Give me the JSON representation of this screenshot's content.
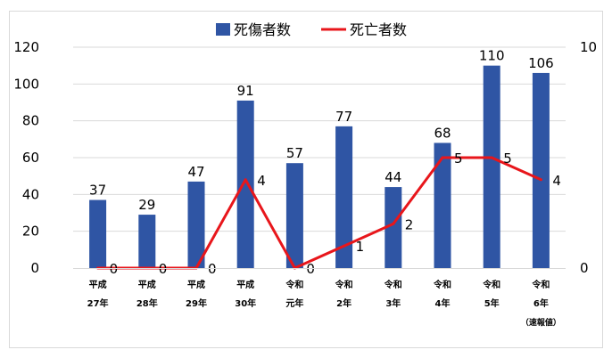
{
  "chart_data": {
    "type": "bar",
    "title": "",
    "categories": [
      [
        "平成",
        "27年"
      ],
      [
        "平成",
        "28年"
      ],
      [
        "平成",
        "29年"
      ],
      [
        "平成",
        "30年"
      ],
      [
        "令和",
        "元年"
      ],
      [
        "令和",
        "2年"
      ],
      [
        "令和",
        "3年"
      ],
      [
        "令和",
        "4年"
      ],
      [
        "令和",
        "5年"
      ],
      [
        "令和",
        "6年",
        "（速報値）"
      ]
    ],
    "series": [
      {
        "name": "死傷者数",
        "type": "bar",
        "axis": "left",
        "values": [
          37,
          29,
          47,
          91,
          57,
          77,
          44,
          68,
          110,
          106
        ]
      },
      {
        "name": "死亡者数",
        "type": "line",
        "axis": "right",
        "values": [
          0,
          0,
          0,
          4,
          0,
          1,
          2,
          5,
          5,
          4
        ]
      }
    ],
    "y_left": {
      "min": 0,
      "max": 120,
      "ticks": [
        0,
        20,
        40,
        60,
        80,
        100,
        120
      ]
    },
    "y_right": {
      "min": 0,
      "max": 10,
      "ticks": [
        0,
        10
      ]
    },
    "grid": true,
    "legend": "top-center",
    "colors": {
      "bar": "#2F55A4",
      "line": "#E8161B",
      "grid": "#d9d9d9",
      "frame": "#d9d9d9"
    }
  }
}
